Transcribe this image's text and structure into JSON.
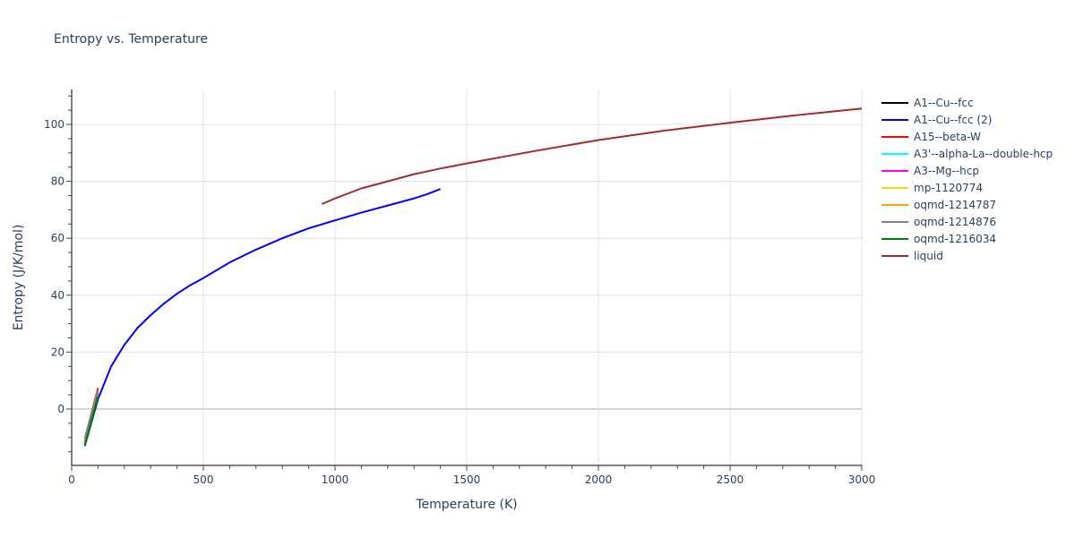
{
  "chart_data": {
    "type": "line",
    "title": "Entropy vs. Temperature",
    "xlabel": "Temperature (K)",
    "ylabel": "Entropy (J/K/mol)",
    "xlim": [
      0,
      3000
    ],
    "ylim": [
      -20,
      112
    ],
    "x_ticks": [
      0,
      500,
      1000,
      1500,
      2000,
      2500,
      3000
    ],
    "y_ticks": [
      0,
      20,
      40,
      60,
      80,
      100
    ],
    "grid": true,
    "legend_position": "right",
    "series": [
      {
        "name": "A1--Cu--fcc",
        "color": "#000000",
        "x": [
          50,
          100
        ],
        "y": [
          -12.5,
          4.5
        ]
      },
      {
        "name": "A1--Cu--fcc (2)",
        "color": "#0000ff",
        "x": [
          50,
          100,
          150,
          200,
          250,
          300,
          350,
          400,
          450,
          500,
          600,
          700,
          800,
          900,
          1000,
          1100,
          1200,
          1300,
          1350,
          1400
        ],
        "y": [
          -13,
          3.5,
          15,
          22.5,
          28.5,
          33,
          37,
          40.5,
          43.5,
          46,
          51.5,
          56,
          60,
          63.5,
          66.3,
          69,
          71.5,
          74,
          75.5,
          77.3
        ]
      },
      {
        "name": "A15--beta-W",
        "color": "#ff0000",
        "x": [
          50,
          100
        ],
        "y": [
          -10.5,
          7.3
        ]
      },
      {
        "name": "A3'--alpha-La--double-hcp",
        "color": "#00ffff",
        "x": [
          50,
          100
        ],
        "y": [
          -12,
          5
        ]
      },
      {
        "name": "A3--Mg--hcp",
        "color": "#ff00ff",
        "x": [
          50,
          100
        ],
        "y": [
          -11.5,
          5.5
        ]
      },
      {
        "name": "mp-1120774",
        "color": "#ffd700",
        "x": [
          50,
          100
        ],
        "y": [
          -11,
          6
        ]
      },
      {
        "name": "oqmd-1214787",
        "color": "#ffa500",
        "x": [
          50,
          100
        ],
        "y": [
          -11,
          6.5
        ]
      },
      {
        "name": "oqmd-1214876",
        "color": "#808080",
        "x": [
          50,
          100
        ],
        "y": [
          -10.5,
          6.5
        ]
      },
      {
        "name": "oqmd-1216034",
        "color": "#008000",
        "x": [
          50,
          100
        ],
        "y": [
          -12.8,
          4.5
        ]
      },
      {
        "name": "liquid",
        "color": "#a52a2a",
        "x": [
          950,
          1000,
          1100,
          1200,
          1300,
          1400,
          1500,
          1750,
          2000,
          2250,
          2500,
          2750,
          3000
        ],
        "y": [
          72,
          74,
          77.5,
          80,
          82.5,
          84.5,
          86.3,
          90.5,
          94.5,
          97.8,
          100.6,
          103.2,
          105.6
        ]
      }
    ]
  },
  "title": "Entropy vs. Temperature",
  "legend": [
    {
      "label": "A1--Cu--fcc",
      "color": "#000000"
    },
    {
      "label": "A1--Cu--fcc (2)",
      "color": "#0000ff"
    },
    {
      "label": "A15--beta-W",
      "color": "#ff0000"
    },
    {
      "label": "A3'--alpha-La--double-hcp",
      "color": "#00ffff"
    },
    {
      "label": "A3--Mg--hcp",
      "color": "#ff00ff"
    },
    {
      "label": "mp-1120774",
      "color": "#ffd700"
    },
    {
      "label": "oqmd-1214787",
      "color": "#ffa500"
    },
    {
      "label": "oqmd-1214876",
      "color": "#808080"
    },
    {
      "label": "oqmd-1216034",
      "color": "#008000"
    },
    {
      "label": "liquid",
      "color": "#a52a2a"
    }
  ]
}
